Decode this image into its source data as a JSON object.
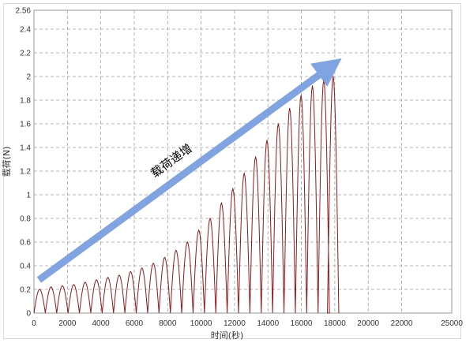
{
  "chart_data": {
    "type": "line",
    "title": "",
    "xlabel": "时间(秒)",
    "ylabel": "载荷(N)",
    "xlim": [
      0,
      25000
    ],
    "ylim": [
      0,
      2.56
    ],
    "x_ticks": [
      0,
      2000,
      4000,
      6000,
      8000,
      10000,
      12000,
      14000,
      16000,
      18000,
      20000,
      22000,
      25000
    ],
    "x_tick_labels": [
      "0",
      "2000",
      "4000",
      "6000",
      "8000",
      "10000",
      "12000",
      "14000",
      "16000",
      "18000",
      "20000",
      "22000",
      "25000"
    ],
    "y_ticks": [
      0,
      0.2,
      0.4,
      0.6,
      0.8,
      1,
      1.2,
      1.4,
      1.6,
      1.8,
      2,
      2.2,
      2.4,
      2.56
    ],
    "y_tick_labels": [
      "0",
      "0.2",
      "0.4",
      "0.6",
      "0.8",
      "1",
      "1.2",
      "1.4",
      "1.6",
      "1.8",
      "2",
      "2.2",
      "2.4",
      "2.56"
    ],
    "grid": true,
    "series": [
      {
        "name": "",
        "color": "#8b1a1a",
        "pattern": "cyclic load, each cycle rises from 0 to a peak and returns to 0; peaks increase over time",
        "cycle_period": 680,
        "peaks": [
          {
            "x": 340,
            "y": 0.2
          },
          {
            "x": 1020,
            "y": 0.22
          },
          {
            "x": 1700,
            "y": 0.23
          },
          {
            "x": 2380,
            "y": 0.24
          },
          {
            "x": 3060,
            "y": 0.26
          },
          {
            "x": 3740,
            "y": 0.28
          },
          {
            "x": 4420,
            "y": 0.3
          },
          {
            "x": 5100,
            "y": 0.32
          },
          {
            "x": 5780,
            "y": 0.35
          },
          {
            "x": 6460,
            "y": 0.38
          },
          {
            "x": 7140,
            "y": 0.42
          },
          {
            "x": 7820,
            "y": 0.47
          },
          {
            "x": 8500,
            "y": 0.53
          },
          {
            "x": 9180,
            "y": 0.6
          },
          {
            "x": 9860,
            "y": 0.7
          },
          {
            "x": 10540,
            "y": 0.8
          },
          {
            "x": 11220,
            "y": 0.93
          },
          {
            "x": 11900,
            "y": 1.05
          },
          {
            "x": 12580,
            "y": 1.18
          },
          {
            "x": 13260,
            "y": 1.32
          },
          {
            "x": 13940,
            "y": 1.46
          },
          {
            "x": 14620,
            "y": 1.6
          },
          {
            "x": 15300,
            "y": 1.73
          },
          {
            "x": 15980,
            "y": 1.84
          },
          {
            "x": 16660,
            "y": 1.92
          },
          {
            "x": 17340,
            "y": 1.97
          },
          {
            "x": 17900,
            "y": 2.0
          }
        ]
      }
    ],
    "annotation": {
      "text": "载荷递增",
      "arrow_from": {
        "x": 300,
        "y": 0.28
      },
      "arrow_to": {
        "x": 17900,
        "y": 2.1
      },
      "arrow_color": "#7a9fe0"
    }
  }
}
